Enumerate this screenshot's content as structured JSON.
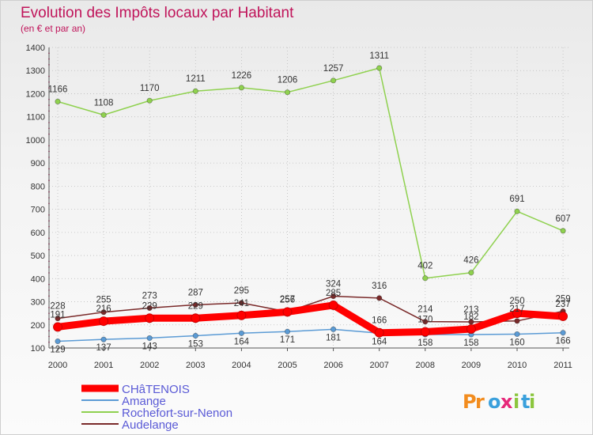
{
  "chart_data": {
    "type": "line",
    "title": "Evolution des Impôts locaux par Habitant",
    "subtitle": "(en € et par an)",
    "x": [
      "2000",
      "2001",
      "2002",
      "2003",
      "2004",
      "2005",
      "2006",
      "2007",
      "2008",
      "2009",
      "2010",
      "2011"
    ],
    "ylim": [
      100,
      1400
    ],
    "yticks": [
      100,
      200,
      300,
      400,
      500,
      600,
      700,
      800,
      900,
      1000,
      1100,
      1200,
      1300,
      1400
    ],
    "series": [
      {
        "name": "CHâTENOIS",
        "color": "#ff0000",
        "values": [
          191,
          216,
          229,
          229,
          241,
          256,
          285,
          166,
          170,
          182,
          250,
          237
        ]
      },
      {
        "name": "Amange",
        "color": "#5b9bd5",
        "values": [
          129,
          137,
          143,
          153,
          164,
          171,
          181,
          164,
          158,
          158,
          160,
          166
        ]
      },
      {
        "name": "Rochefort-sur-Nenon",
        "color": "#8fd14f",
        "values": [
          1166,
          1108,
          1170,
          1211,
          1226,
          1206,
          1257,
          1311,
          402,
          426,
          691,
          607
        ]
      },
      {
        "name": "Audelange",
        "color": "#7a2a2a",
        "values": [
          228,
          255,
          273,
          287,
          295,
          257,
          324,
          316,
          214,
          213,
          217,
          259
        ]
      }
    ],
    "logo": "Proxiti"
  }
}
